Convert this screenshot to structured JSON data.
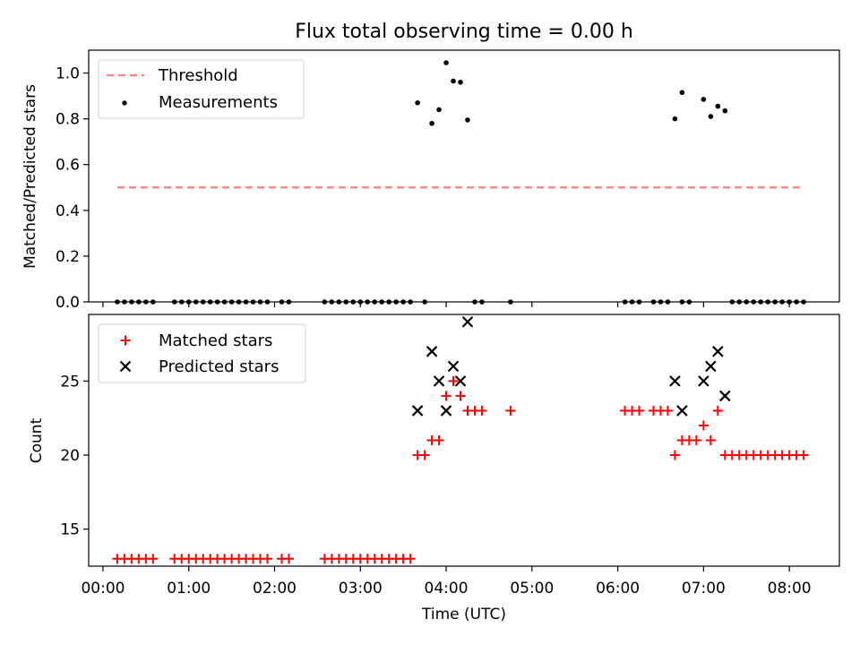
{
  "title": "Flux total observing time = 0.00 h",
  "colors": {
    "threshold": "#ff7f7f",
    "measurement": "#000000",
    "matched": "#ff0000",
    "predicted": "#000000"
  },
  "chart_data": [
    {
      "panel": "top",
      "type": "scatter",
      "ylabel": "Matched/Predicted stars",
      "ylim": [
        0,
        1.1
      ],
      "yticks": [
        0.0,
        0.2,
        0.4,
        0.6,
        0.8,
        1.0
      ],
      "ytick_labels": [
        "0.0",
        "0.2",
        "0.4",
        "0.6",
        "0.8",
        "1.0"
      ],
      "legend": {
        "placement": "top-left",
        "entries": [
          "Threshold",
          "Measurements"
        ]
      },
      "threshold": {
        "name": "Threshold",
        "y": 0.5,
        "x": [
          "00:10",
          "08:10"
        ]
      },
      "measurements": {
        "name": "Measurements",
        "points": [
          [
            "00:10",
            0
          ],
          [
            "00:15",
            0
          ],
          [
            "00:20",
            0
          ],
          [
            "00:25",
            0
          ],
          [
            "00:30",
            0
          ],
          [
            "00:35",
            0
          ],
          [
            "00:50",
            0
          ],
          [
            "00:55",
            0
          ],
          [
            "01:00",
            0
          ],
          [
            "01:05",
            0
          ],
          [
            "01:10",
            0
          ],
          [
            "01:15",
            0
          ],
          [
            "01:20",
            0
          ],
          [
            "01:25",
            0
          ],
          [
            "01:30",
            0
          ],
          [
            "01:35",
            0
          ],
          [
            "01:40",
            0
          ],
          [
            "01:45",
            0
          ],
          [
            "01:50",
            0
          ],
          [
            "01:55",
            0
          ],
          [
            "02:05",
            0
          ],
          [
            "02:10",
            0
          ],
          [
            "02:35",
            0
          ],
          [
            "02:40",
            0
          ],
          [
            "02:45",
            0
          ],
          [
            "02:50",
            0
          ],
          [
            "02:55",
            0
          ],
          [
            "03:00",
            0
          ],
          [
            "03:05",
            0
          ],
          [
            "03:10",
            0
          ],
          [
            "03:15",
            0
          ],
          [
            "03:20",
            0
          ],
          [
            "03:25",
            0
          ],
          [
            "03:30",
            0
          ],
          [
            "03:35",
            0
          ],
          [
            "03:45",
            0
          ],
          [
            "03:40",
            0.87
          ],
          [
            "03:50",
            0.78
          ],
          [
            "03:55",
            0.84
          ],
          [
            "04:00",
            1.045
          ],
          [
            "04:05",
            0.965
          ],
          [
            "04:10",
            0.96
          ],
          [
            "04:15",
            0.795
          ],
          [
            "04:20",
            0
          ],
          [
            "04:25",
            0
          ],
          [
            "04:45",
            0
          ],
          [
            "06:05",
            0
          ],
          [
            "06:10",
            0
          ],
          [
            "06:15",
            0
          ],
          [
            "06:25",
            0
          ],
          [
            "06:30",
            0
          ],
          [
            "06:35",
            0
          ],
          [
            "06:45",
            0
          ],
          [
            "06:50",
            0
          ],
          [
            "06:40",
            0.8
          ],
          [
            "06:45",
            0.915
          ],
          [
            "07:00",
            0.885
          ],
          [
            "07:05",
            0.81
          ],
          [
            "07:10",
            0.855
          ],
          [
            "07:15",
            0.835
          ],
          [
            "07:20",
            0
          ],
          [
            "07:25",
            0
          ],
          [
            "07:30",
            0
          ],
          [
            "07:35",
            0
          ],
          [
            "07:40",
            0
          ],
          [
            "07:45",
            0
          ],
          [
            "07:50",
            0
          ],
          [
            "07:55",
            0
          ],
          [
            "08:00",
            0
          ],
          [
            "08:05",
            0
          ],
          [
            "08:10",
            0
          ]
        ]
      }
    },
    {
      "panel": "bottom",
      "type": "scatter",
      "xlabel": "Time (UTC)",
      "ylabel": "Count",
      "ylim": [
        12.5,
        29.5
      ],
      "yticks": [
        15,
        20,
        25
      ],
      "ytick_labels": [
        "15",
        "20",
        "25"
      ],
      "xlim": [
        "-00:10",
        "08:35"
      ],
      "xticks": [
        "00:00",
        "01:00",
        "02:00",
        "03:00",
        "04:00",
        "05:00",
        "06:00",
        "07:00",
        "08:00"
      ],
      "legend": {
        "placement": "top-left",
        "entries": [
          "Matched stars",
          "Predicted stars"
        ]
      },
      "series": [
        {
          "name": "Matched stars",
          "marker": "+",
          "points": [
            [
              "00:10",
              13
            ],
            [
              "00:15",
              13
            ],
            [
              "00:20",
              13
            ],
            [
              "00:25",
              13
            ],
            [
              "00:30",
              13
            ],
            [
              "00:35",
              13
            ],
            [
              "00:50",
              13
            ],
            [
              "00:55",
              13
            ],
            [
              "01:00",
              13
            ],
            [
              "01:05",
              13
            ],
            [
              "01:10",
              13
            ],
            [
              "01:15",
              13
            ],
            [
              "01:20",
              13
            ],
            [
              "01:25",
              13
            ],
            [
              "01:30",
              13
            ],
            [
              "01:35",
              13
            ],
            [
              "01:40",
              13
            ],
            [
              "01:45",
              13
            ],
            [
              "01:50",
              13
            ],
            [
              "01:55",
              13
            ],
            [
              "02:05",
              13
            ],
            [
              "02:10",
              13
            ],
            [
              "02:35",
              13
            ],
            [
              "02:40",
              13
            ],
            [
              "02:45",
              13
            ],
            [
              "02:50",
              13
            ],
            [
              "02:55",
              13
            ],
            [
              "03:00",
              13
            ],
            [
              "03:05",
              13
            ],
            [
              "03:10",
              13
            ],
            [
              "03:15",
              13
            ],
            [
              "03:20",
              13
            ],
            [
              "03:25",
              13
            ],
            [
              "03:30",
              13
            ],
            [
              "03:35",
              13
            ],
            [
              "03:40",
              20
            ],
            [
              "03:45",
              20
            ],
            [
              "03:50",
              21
            ],
            [
              "03:55",
              21
            ],
            [
              "04:00",
              24
            ],
            [
              "04:05",
              25
            ],
            [
              "04:10",
              24
            ],
            [
              "04:15",
              23
            ],
            [
              "04:20",
              23
            ],
            [
              "04:25",
              23
            ],
            [
              "04:45",
              23
            ],
            [
              "06:05",
              23
            ],
            [
              "06:10",
              23
            ],
            [
              "06:15",
              23
            ],
            [
              "06:25",
              23
            ],
            [
              "06:30",
              23
            ],
            [
              "06:35",
              23
            ],
            [
              "06:40",
              20
            ],
            [
              "06:45",
              21
            ],
            [
              "06:50",
              21
            ],
            [
              "06:55",
              21
            ],
            [
              "07:00",
              22
            ],
            [
              "07:05",
              21
            ],
            [
              "07:10",
              23
            ],
            [
              "07:15",
              20
            ],
            [
              "07:20",
              20
            ],
            [
              "07:25",
              20
            ],
            [
              "07:30",
              20
            ],
            [
              "07:35",
              20
            ],
            [
              "07:40",
              20
            ],
            [
              "07:45",
              20
            ],
            [
              "07:50",
              20
            ],
            [
              "07:55",
              20
            ],
            [
              "08:00",
              20
            ],
            [
              "08:05",
              20
            ],
            [
              "08:10",
              20
            ]
          ]
        },
        {
          "name": "Predicted stars",
          "marker": "x",
          "points": [
            [
              "03:40",
              23
            ],
            [
              "03:50",
              27
            ],
            [
              "03:55",
              25
            ],
            [
              "04:00",
              23
            ],
            [
              "04:05",
              26
            ],
            [
              "04:10",
              25
            ],
            [
              "04:15",
              29
            ],
            [
              "06:40",
              25
            ],
            [
              "06:45",
              23
            ],
            [
              "07:00",
              25
            ],
            [
              "07:05",
              26
            ],
            [
              "07:10",
              27
            ],
            [
              "07:15",
              24
            ]
          ]
        }
      ]
    }
  ]
}
